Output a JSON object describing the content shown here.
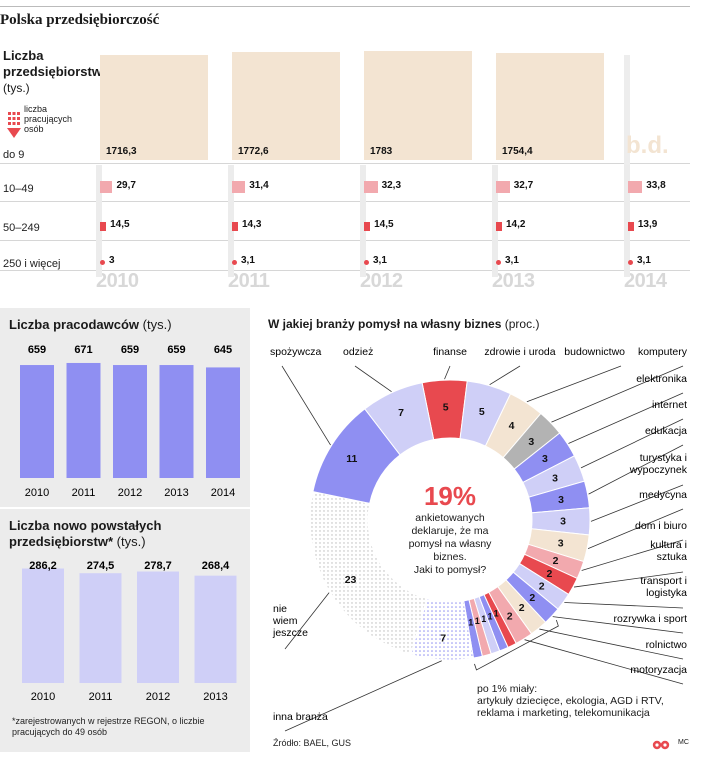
{
  "header": {
    "title": "Polska przedsiębiorczość"
  },
  "enterprises": {
    "label": "Liczba przedsiębiorstw",
    "unit": "(tys.)",
    "legend_label": "liczba pracujących osób",
    "rows": [
      "do 9",
      "10–49",
      "50–249",
      "250 i więcej"
    ],
    "years": [
      "2010",
      "2011",
      "2012",
      "2013",
      "2014"
    ],
    "values": [
      [
        "1716,3",
        "29,7",
        "14,5",
        "3"
      ],
      [
        "1772,6",
        "31,4",
        "14,3",
        "3,1"
      ],
      [
        "1783",
        "32,3",
        "14,5",
        "3,1"
      ],
      [
        "1754,4",
        "32,7",
        "14,2",
        "3,1"
      ],
      [
        "b.d.",
        "33,8",
        "13,9",
        "3,1"
      ]
    ]
  },
  "employers": {
    "label": "Liczba pracodawców",
    "unit": "(tys.)",
    "labels": [
      "659",
      "671",
      "659",
      "659",
      "645"
    ]
  },
  "new_enterprises": {
    "label": "Liczba nowo powstałych przedsiębiorstw*",
    "unit": "(tys.)",
    "labels": [
      "286,2",
      "274,5",
      "278,7",
      "268,4"
    ]
  },
  "footnote": "*zarejestrowanych w rejestrze REGON, o liczbie pracujących do 49 osób",
  "donut": {
    "title": "W jakiej branży pomysł na własny biznes",
    "unit": "(proc.)",
    "center_pct": "19%",
    "center_text": [
      "ankietowanych",
      "deklaruje, że ma",
      "pomysł na własny",
      "biznes.",
      "Jaki to pomysł?"
    ],
    "small_note_title": "po 1% miały:",
    "small_note_lines": [
      "artykuły dziecięce, ekologia, AGD i RTV,",
      "reklama i marketing, telekomunikacja"
    ]
  },
  "source": "Źródło: BAEL, GUS",
  "credit": "MC",
  "colors": {
    "beige": "#f3e4d2",
    "pink": "#f2a9ae",
    "red": "#e8494f",
    "purple": "#8f8ff2",
    "lavender": "#cfcff7",
    "grey_text": "#d8d8d8"
  },
  "chart_data": [
    {
      "type": "table",
      "title": "Polska przedsiębiorczość",
      "ylabel": "Liczba przedsiębiorstw (tys.)",
      "categories": [
        "2010",
        "2011",
        "2012",
        "2013",
        "2014"
      ],
      "series": [
        {
          "name": "do 9",
          "values": [
            1716.3,
            1772.6,
            1783,
            1754.4,
            null
          ]
        },
        {
          "name": "10–49",
          "values": [
            29.7,
            31.4,
            32.3,
            32.7,
            33.8
          ]
        },
        {
          "name": "50–249",
          "values": [
            14.5,
            14.3,
            14.5,
            14.2,
            13.9
          ]
        },
        {
          "name": "250 i więcej",
          "values": [
            3,
            3.1,
            3.1,
            3.1,
            3.1
          ]
        }
      ]
    },
    {
      "type": "bar",
      "title": "Liczba pracodawców (tys.)",
      "categories": [
        "2010",
        "2011",
        "2012",
        "2013",
        "2014"
      ],
      "values": [
        659,
        671,
        659,
        659,
        645
      ],
      "ylim": [
        0,
        700
      ]
    },
    {
      "type": "bar",
      "title": "Liczba nowo powstałych przedsiębiorstw* (tys.)",
      "categories": [
        "2010",
        "2011",
        "2012",
        "2013"
      ],
      "values": [
        286.2,
        274.5,
        278.7,
        268.4
      ],
      "ylim": [
        0,
        300
      ]
    },
    {
      "type": "pie",
      "title": "W jakiej branży pomysł na własny biznes (proc.)",
      "categories": [
        "finanse",
        "zdrowie i uroda",
        "budownictwo",
        "komputery",
        "elektronika",
        "internet",
        "edukacja",
        "turystyka i wypoczynek",
        "medycyna",
        "dom i biuro",
        "kultura i sztuka",
        "transport i logistyka",
        "rozrywka i sport",
        "rolnictwo",
        "motoryzacja",
        "po 1%: artykuły dziecięce",
        "po 1%: ekologia",
        "po 1%: AGD i RTV",
        "po 1%: reklama i marketing",
        "po 1%: telekomunikacja",
        "inna branża",
        "nie wiem jeszcze",
        "spożywcza",
        "odzież"
      ],
      "values": [
        5,
        5,
        4,
        3,
        3,
        3,
        3,
        3,
        3,
        2,
        2,
        2,
        2,
        2,
        2,
        1,
        1,
        1,
        1,
        1,
        7,
        23,
        11,
        7
      ],
      "value_labels": [
        "5",
        "5",
        "4",
        "3",
        "3",
        "3",
        "3",
        "3",
        "3",
        "2",
        "2",
        "2",
        "2",
        "2",
        "2",
        "1",
        "1",
        "1",
        "1",
        "1",
        "7",
        "23",
        "11",
        "7"
      ],
      "leader_labels": [
        "finanse",
        "zdrowie i uroda",
        "budownictwo",
        "komputery",
        "elektronika",
        "internet",
        "edukacja",
        "turystyka i wypoczynek",
        "medycyna",
        "dom i biuro",
        "kultura i sztuka",
        "transport i logistyka",
        "rozrywka i sport",
        "rolnictwo",
        "motoryzacja",
        "",
        "",
        "",
        "",
        "",
        "inna branża",
        "nie wiem jeszcze",
        "spożywcza",
        "odzież"
      ],
      "colors": [
        "#e8494f",
        "#cfcff7",
        "#f3e4d2",
        "#b3b3b3",
        "#8f8ff2",
        "#cfcff7",
        "#8f8ff2",
        "#cfcff7",
        "#f3e4d2",
        "#f2a9ae",
        "#e8494f",
        "#cfcff7",
        "#8f8ff2",
        "#f3e4d2",
        "#f2a9ae",
        "#e8494f",
        "#8f8ff2",
        "#cfcff7",
        "#f2a9ae",
        "#8f8ff2",
        "dots-purple",
        "dots-grey",
        "#8f8ff2",
        "#cfcff7"
      ]
    }
  ]
}
